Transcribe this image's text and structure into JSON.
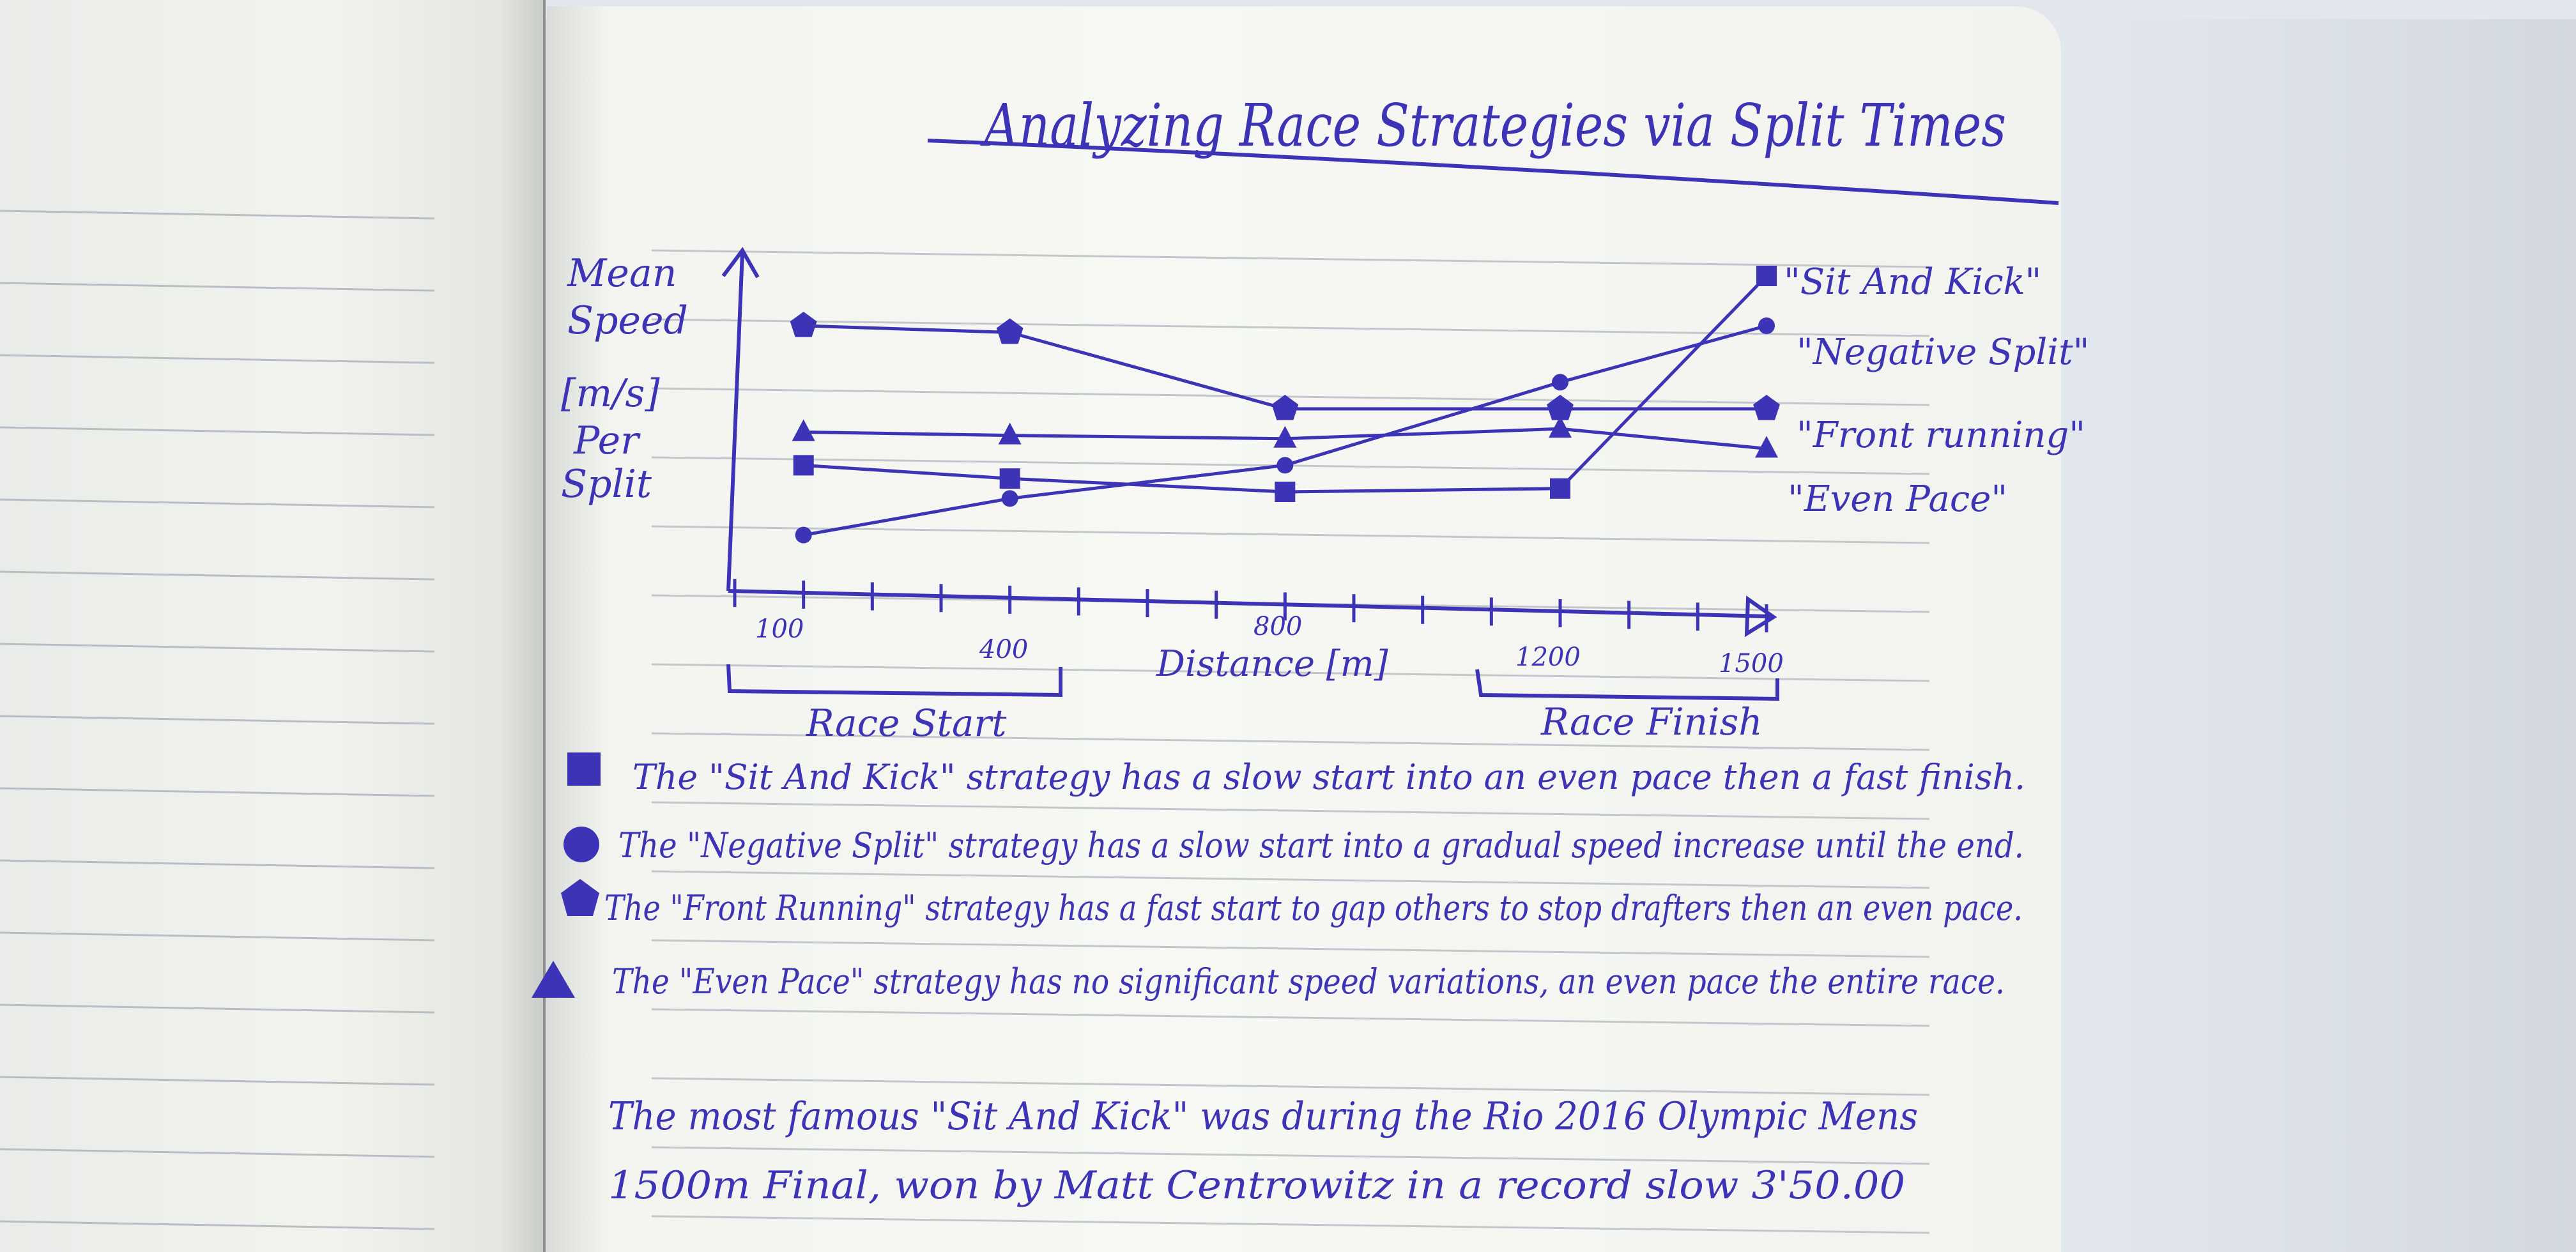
{
  "title": "Analyzing Race Strategies via Split Times",
  "chart_data": {
    "type": "line",
    "title": "Analyzing Race Strategies via Split Times",
    "ylabel": "Mean Speed [m/s] Per Split",
    "xlabel": "Distance [m]",
    "x_ticks": [
      "100",
      "400",
      "800",
      "1200",
      "1500"
    ],
    "x": [
      100,
      400,
      800,
      1200,
      1500
    ],
    "xlim": [
      0,
      1500
    ],
    "ylim": [
      0,
      10
    ],
    "grid": false,
    "legend": "right",
    "series": [
      {
        "name": "\"Sit And Kick\"",
        "marker": "square",
        "values": [
          3.3,
          2.9,
          2.5,
          2.6,
          9.0
        ]
      },
      {
        "name": "\"Negative Split\"",
        "marker": "circle",
        "values": [
          1.2,
          2.3,
          3.3,
          5.8,
          7.5
        ]
      },
      {
        "name": "\"Front running\"",
        "marker": "pentagon",
        "values": [
          7.5,
          7.3,
          5.0,
          5.0,
          5.0
        ]
      },
      {
        "name": "\"Even Pace\"",
        "marker": "triangle",
        "values": [
          4.3,
          4.2,
          4.1,
          4.4,
          3.8
        ]
      }
    ],
    "annotations": [
      "Race Start",
      "Race Finish"
    ]
  },
  "notes": [
    {
      "marker": "square",
      "text": "The \"Sit And Kick\" strategy has a slow start into an even pace then a fast finish."
    },
    {
      "marker": "circle",
      "text": "The \"Negative Split\" strategy has a slow start into a gradual speed increase until the end."
    },
    {
      "marker": "pentagon",
      "text": "The \"Front Running\" strategy has a fast start to gap others to stop drafters then an even pace."
    },
    {
      "marker": "triangle",
      "text": "The \"Even Pace\" strategy has no significant speed variations, an even pace the entire race."
    }
  ],
  "footer": [
    "The most famous \"Sit And Kick\" was during the Rio 2016 Olympic Mens",
    "1500m Final, won by Matt Centrowitz in a record slow 3'50.00"
  ],
  "colors": {
    "ink": "#3c33b6",
    "rule": "#b9bdc4",
    "paper": "#f6f7f3"
  }
}
